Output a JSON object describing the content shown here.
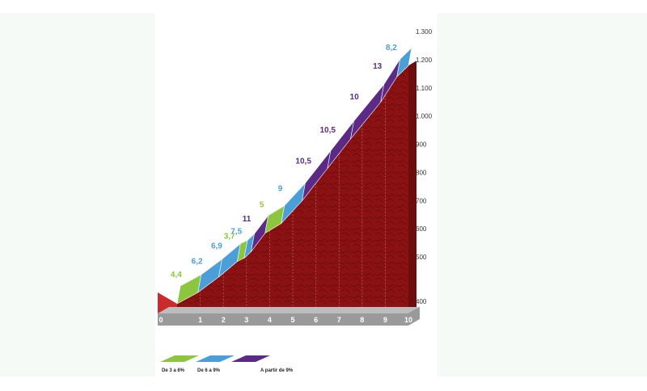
{
  "chart_data": {
    "type": "area",
    "x": [
      0,
      1,
      2,
      3,
      4,
      5,
      6,
      7,
      8,
      9,
      10
    ],
    "x_ticks": [
      "0",
      "1",
      "2",
      "3",
      "4",
      "5",
      "6",
      "7",
      "8",
      "9",
      "10"
    ],
    "y_ticks": [
      "400",
      "500",
      "600",
      "700",
      "800",
      "900",
      "1.000",
      "1.100",
      "1.200",
      "1.300"
    ],
    "ylim": [
      400,
      1340
    ],
    "segments": [
      {
        "from": 0,
        "to": 0.9,
        "grade": "4,4",
        "category": 0
      },
      {
        "from": 0.9,
        "to": 1.8,
        "grade": "6,2",
        "category": 1
      },
      {
        "from": 1.8,
        "to": 2.6,
        "grade": "6,9",
        "category": 1
      },
      {
        "from": 2.6,
        "to": 2.9,
        "grade": "3,7",
        "category": 0
      },
      {
        "from": 2.9,
        "to": 3.2,
        "grade": "7,5",
        "category": 1
      },
      {
        "from": 3.2,
        "to": 3.8,
        "grade": "11",
        "category": 2
      },
      {
        "from": 3.8,
        "to": 4.5,
        "grade": "5",
        "category": 0
      },
      {
        "from": 4.5,
        "to": 5.4,
        "grade": "9",
        "category": 1
      },
      {
        "from": 5.4,
        "to": 6.5,
        "grade": "10,5",
        "category": 2
      },
      {
        "from": 6.5,
        "to": 7.5,
        "grade": "10,5",
        "category": 2
      },
      {
        "from": 7.5,
        "to": 8.8,
        "grade": "10",
        "category": 2
      },
      {
        "from": 8.8,
        "to": 9.5,
        "grade": "13",
        "category": 2
      },
      {
        "from": 9.5,
        "to": 10,
        "grade": "8,2",
        "category": 1
      }
    ],
    "profile_x": [
      0,
      0.9,
      1.8,
      2.6,
      2.9,
      3.2,
      3.8,
      4.5,
      5.4,
      6.5,
      7.5,
      8.8,
      9.5,
      10
    ],
    "profile_alt": [
      400,
      440,
      495,
      550,
      562,
      585,
      650,
      685,
      765,
      880,
      985,
      1115,
      1205,
      1245
    ],
    "legend": [
      {
        "label": "De 3 a 6%",
        "color": "#8cc63f"
      },
      {
        "label": "De 6 a 9%",
        "color": "#4a9fd8"
      },
      {
        "label": "A partir de 9%",
        "color": "#5b2a86"
      }
    ],
    "colors": {
      "profile_fill": "#8a1212",
      "base": "#9a9a9a",
      "start_face": "#cc2a2a",
      "grade_colors": [
        "#8cc63f",
        "#4a9fd8",
        "#5b2a86"
      ]
    }
  }
}
